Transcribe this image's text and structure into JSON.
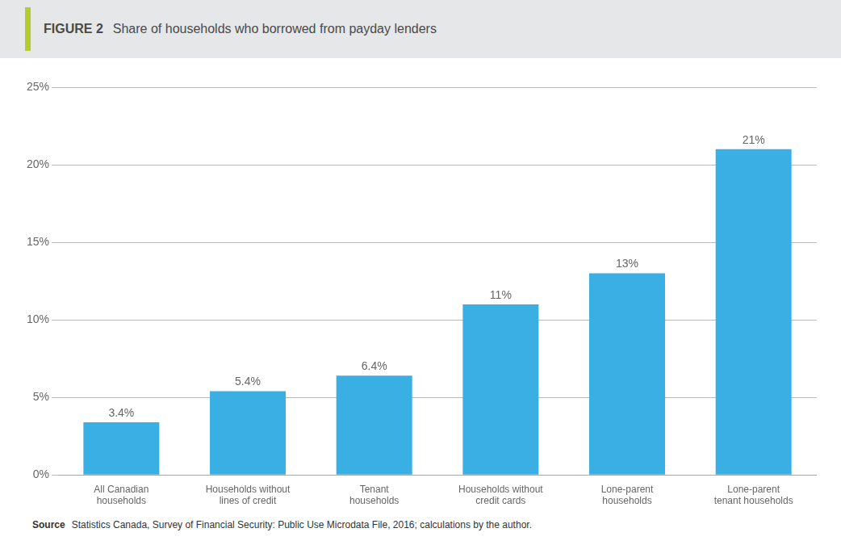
{
  "chart_data": {
    "type": "bar",
    "title": "FIGURE 2",
    "subtitle": "Share of households who borrowed from payday lenders",
    "categories": [
      "All Canadian\nhouseholds",
      "Households without\nlines of credit",
      "Tenant\nhouseholds",
      "Households without\ncredit cards",
      "Lone-parent\nhouseholds",
      "Lone-parent\ntenant households"
    ],
    "values": [
      3.4,
      5.4,
      6.4,
      11,
      13,
      21
    ],
    "value_labels": [
      "3.4%",
      "5.4%",
      "6.4%",
      "11%",
      "13%",
      "21%"
    ],
    "data_labels": true,
    "color": "#3AAFE4",
    "ylim": [
      0,
      25
    ],
    "yticks": [
      {
        "value": 0,
        "label": "0%"
      },
      {
        "value": 5,
        "label": "5%"
      },
      {
        "value": 10,
        "label": "10%"
      },
      {
        "value": 15,
        "label": "15%"
      },
      {
        "value": 20,
        "label": "20%"
      },
      {
        "value": 25,
        "label": "25%"
      }
    ],
    "grid": true,
    "annotations": [
      "Source",
      "Statistics Canada, Survey of Financial Security: Public Use Microdata File, 2016; calculations by the author."
    ]
  }
}
